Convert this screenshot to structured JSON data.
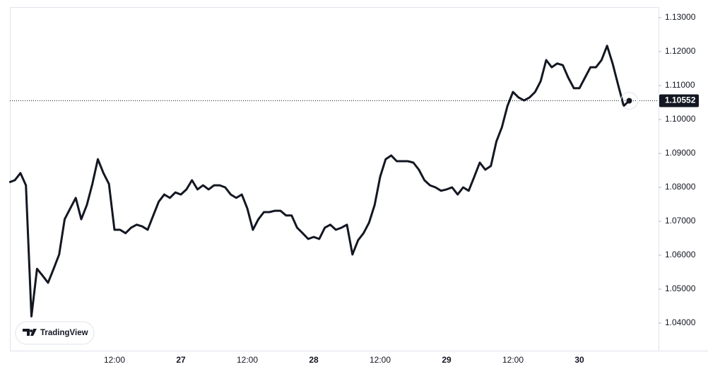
{
  "chart_data": {
    "type": "line",
    "logo": "TradingView",
    "categories": [
      null,
      null,
      null,
      null,
      null,
      null,
      null,
      null,
      null,
      null,
      null,
      null,
      null,
      null,
      null,
      null,
      null,
      null,
      null,
      "12:00",
      null,
      null,
      null,
      null,
      null,
      null,
      null,
      null,
      null,
      null,
      null,
      "27",
      null,
      null,
      null,
      null,
      null,
      null,
      null,
      null,
      null,
      null,
      null,
      "12:00",
      null,
      null,
      null,
      null,
      null,
      null,
      null,
      null,
      null,
      null,
      null,
      "28",
      null,
      null,
      null,
      null,
      null,
      null,
      null,
      null,
      null,
      null,
      null,
      "12:00",
      null,
      null,
      null,
      null,
      null,
      null,
      null,
      null,
      null,
      null,
      null,
      "29",
      null,
      null,
      null,
      null,
      null,
      null,
      null,
      null,
      null,
      null,
      null,
      "12:00",
      null,
      null,
      null,
      null,
      null,
      null,
      null,
      null,
      null,
      null,
      null,
      "30",
      null,
      null,
      null,
      null,
      null,
      null,
      null,
      null,
      null
    ],
    "values": [
      1.0815,
      1.0821,
      1.0842,
      1.0806,
      1.042,
      1.056,
      1.054,
      1.0519,
      1.056,
      1.0602,
      1.0706,
      1.0738,
      1.0769,
      1.0706,
      1.0748,
      1.081,
      1.0883,
      1.0842,
      1.081,
      1.0675,
      1.0675,
      1.0665,
      1.0681,
      1.069,
      1.0685,
      1.0675,
      1.0717,
      1.0758,
      1.0779,
      1.0769,
      1.0785,
      1.0779,
      1.0794,
      1.0821,
      1.0794,
      1.0806,
      1.0794,
      1.0806,
      1.0806,
      1.08,
      1.0779,
      1.0769,
      1.0779,
      1.0738,
      1.0675,
      1.0706,
      1.0727,
      1.0727,
      1.0731,
      1.0731,
      1.0717,
      1.0717,
      1.0681,
      1.0665,
      1.0648,
      1.0654,
      1.0648,
      1.0681,
      1.069,
      1.0675,
      1.0681,
      1.069,
      1.0602,
      1.0644,
      1.0665,
      1.0696,
      1.0748,
      1.0831,
      1.0883,
      1.0894,
      1.0877,
      1.0877,
      1.0877,
      1.0873,
      1.0852,
      1.0821,
      1.0806,
      1.08,
      1.079,
      1.0794,
      1.08,
      1.0779,
      1.08,
      1.079,
      1.0831,
      1.0873,
      1.0852,
      1.0863,
      1.0935,
      1.0977,
      1.104,
      1.1081,
      1.1065,
      1.1056,
      1.1065,
      1.1081,
      1.1113,
      1.1175,
      1.1154,
      1.1165,
      1.116,
      1.1123,
      1.1092,
      1.1092,
      1.1123,
      1.1154,
      1.1154,
      1.1175,
      1.1217,
      1.1165,
      1.1102,
      1.104,
      1.10552
    ],
    "color": "#131722",
    "ylim": [
      1.031875,
      1.133125
    ],
    "yticks": [
      {
        "value": 1.04,
        "label": "1.04000"
      },
      {
        "value": 1.05,
        "label": "1.05000"
      },
      {
        "value": 1.06,
        "label": "1.06000"
      },
      {
        "value": 1.07,
        "label": "1.07000"
      },
      {
        "value": 1.08,
        "label": "1.08000"
      },
      {
        "value": 1.09,
        "label": "1.09000"
      },
      {
        "value": 1.1,
        "label": "1.10000"
      },
      {
        "value": 1.11,
        "label": "1.11000"
      },
      {
        "value": 1.12,
        "label": "1.12000"
      },
      {
        "value": 1.13,
        "label": "1.13000"
      }
    ],
    "grid": false
  }
}
